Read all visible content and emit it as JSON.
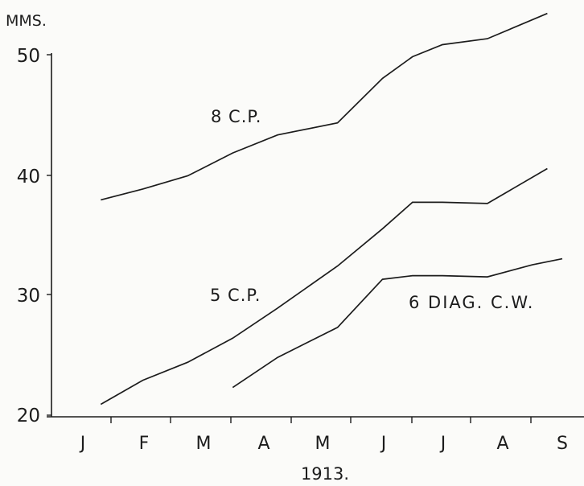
{
  "chart_data": {
    "type": "line",
    "ylabel": "MMS.",
    "xlabel": "1913.",
    "categories": [
      "J",
      "F",
      "M",
      "A",
      "M",
      "J",
      "J",
      "A",
      "S"
    ],
    "ylim": [
      20,
      54
    ],
    "yticks": [
      20,
      30,
      40,
      50
    ],
    "grid": false,
    "series": [
      {
        "name": "8 C.P.",
        "points": [
          [
            0.3,
            37.9
          ],
          [
            1.0,
            38.8
          ],
          [
            1.75,
            39.9
          ],
          [
            2.5,
            41.8
          ],
          [
            3.25,
            43.3
          ],
          [
            4.25,
            44.3
          ],
          [
            5.0,
            48.0
          ],
          [
            5.5,
            49.8
          ],
          [
            6.0,
            50.8
          ],
          [
            6.75,
            51.3
          ],
          [
            7.75,
            53.4
          ]
        ]
      },
      {
        "name": "5 C.P.",
        "points": [
          [
            0.3,
            20.9
          ],
          [
            1.0,
            22.9
          ],
          [
            1.75,
            24.4
          ],
          [
            2.5,
            26.4
          ],
          [
            3.25,
            28.9
          ],
          [
            4.25,
            32.4
          ],
          [
            5.0,
            35.5
          ],
          [
            5.5,
            37.7
          ],
          [
            6.0,
            37.7
          ],
          [
            6.75,
            37.6
          ],
          [
            7.75,
            40.5
          ]
        ]
      },
      {
        "name": "6 DIAG. C.W.",
        "points": [
          [
            2.5,
            22.3
          ],
          [
            3.25,
            24.8
          ],
          [
            4.25,
            27.3
          ],
          [
            5.0,
            31.3
          ],
          [
            5.5,
            31.6
          ],
          [
            6.0,
            31.6
          ],
          [
            6.75,
            31.5
          ],
          [
            7.5,
            32.5
          ],
          [
            8.0,
            33.0
          ]
        ]
      }
    ]
  }
}
